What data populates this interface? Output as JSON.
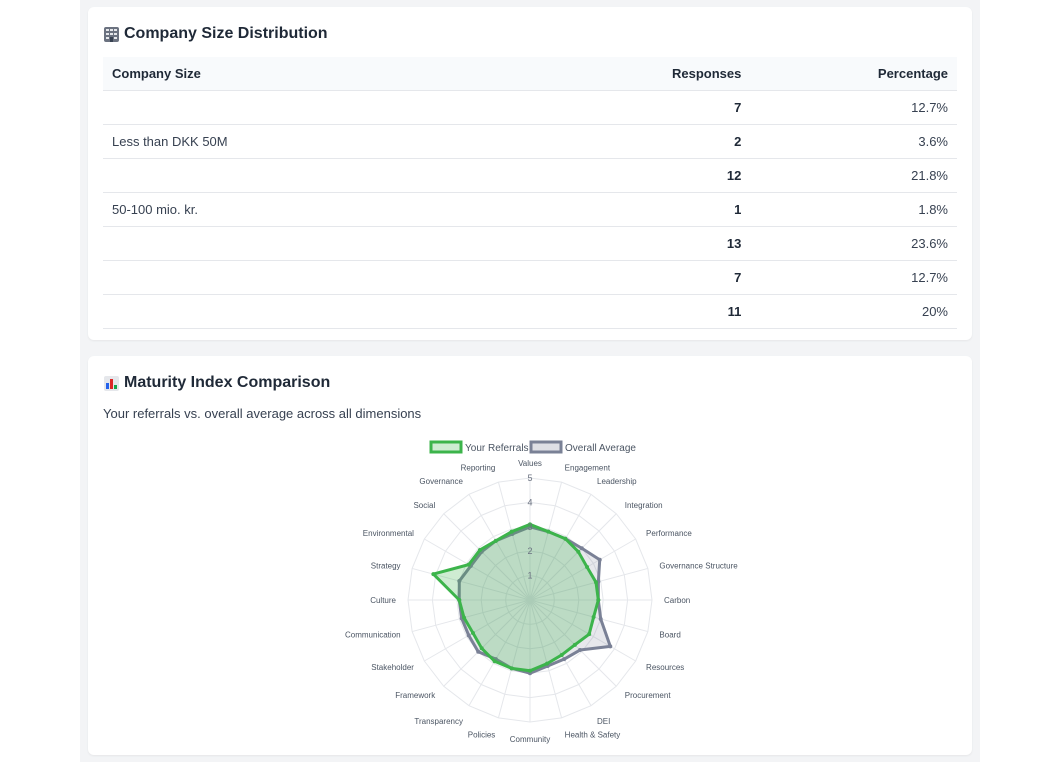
{
  "size_card": {
    "title": "Company Size Distribution",
    "icon": "office-building-icon",
    "columns": {
      "size": "Company Size",
      "responses": "Responses",
      "percentage": "Percentage"
    },
    "rows": [
      {
        "size": "",
        "responses": "7",
        "percentage": "12.7%"
      },
      {
        "size": "Less than DKK 50M",
        "responses": "2",
        "percentage": "3.6%"
      },
      {
        "size": "",
        "responses": "12",
        "percentage": "21.8%"
      },
      {
        "size": "50-100 mio. kr.",
        "responses": "1",
        "percentage": "1.8%"
      },
      {
        "size": "",
        "responses": "13",
        "percentage": "23.6%"
      },
      {
        "size": "",
        "responses": "7",
        "percentage": "12.7%"
      },
      {
        "size": "",
        "responses": "11",
        "percentage": "20%"
      }
    ]
  },
  "maturity_card": {
    "title": "Maturity Index Comparison",
    "icon": "bar-chart-icon",
    "subtitle": "Your referrals vs. overall average across all dimensions"
  },
  "chart_data": {
    "type": "radar",
    "axes": [
      "Values",
      "Engagement",
      "Leadership",
      "Integration",
      "Performance",
      "Governance Structure",
      "Carbon",
      "Board",
      "Resources",
      "Procurement",
      "DEI",
      "Health & Safety",
      "Community",
      "Policies",
      "Transparency",
      "Framework",
      "Stakeholder",
      "Communication",
      "Culture",
      "Strategy",
      "Environmental",
      "Social",
      "Governance",
      "Reporting"
    ],
    "rlim": [
      0,
      5
    ],
    "ticks": [
      "1",
      "2",
      "3",
      "4",
      "5"
    ],
    "legend_position": "top",
    "series": [
      {
        "name": "Your Referrals",
        "color": "#3cb44b",
        "values": [
          3.1,
          2.9,
          2.9,
          2.8,
          2.7,
          2.8,
          2.8,
          2.7,
          2.8,
          2.6,
          2.6,
          2.7,
          2.9,
          2.9,
          2.9,
          2.8,
          2.7,
          2.8,
          2.9,
          4.1,
          2.9,
          2.9,
          2.8,
          2.9
        ]
      },
      {
        "name": "Overall Average",
        "color": "#7a8196",
        "values": [
          3.0,
          2.9,
          2.9,
          3.0,
          3.3,
          2.9,
          2.8,
          3.0,
          3.8,
          2.9,
          2.8,
          2.8,
          3.0,
          2.9,
          2.8,
          3.0,
          2.9,
          2.9,
          2.9,
          3.0,
          2.8,
          2.8,
          2.8,
          2.8
        ]
      }
    ]
  }
}
